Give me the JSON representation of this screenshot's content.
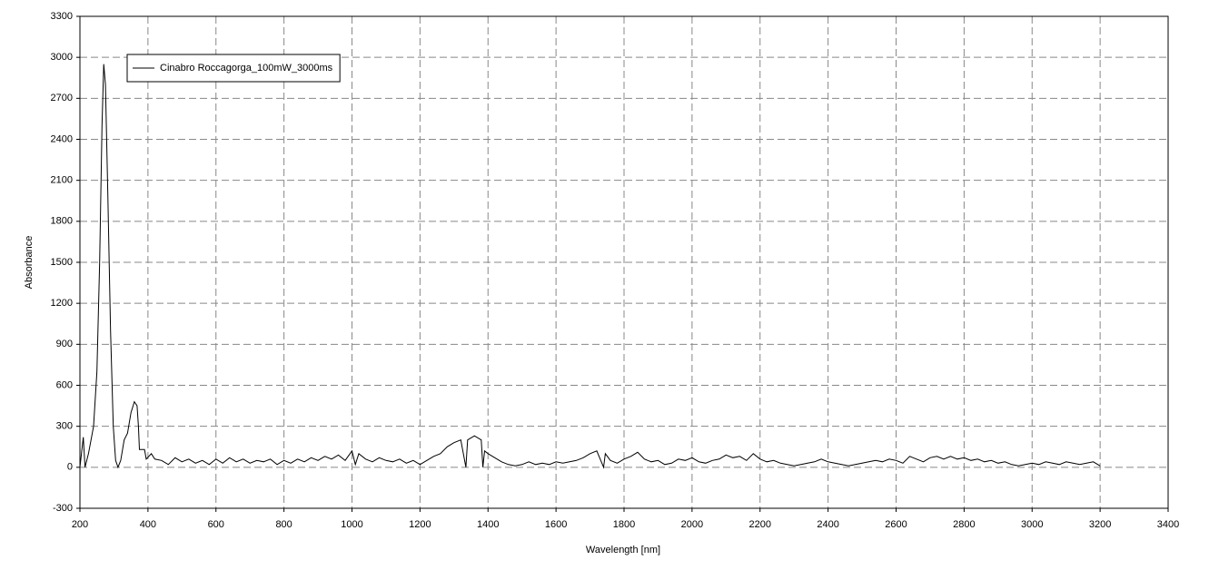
{
  "chart_data": {
    "type": "line",
    "xlabel": "Wavelength [nm]",
    "ylabel": "Absorbance",
    "xlim": [
      200,
      3400
    ],
    "xticks": [
      200,
      400,
      600,
      800,
      1000,
      1200,
      1400,
      1600,
      1800,
      2000,
      2200,
      2400,
      2600,
      2800,
      3000,
      3200,
      3400
    ],
    "ylim": [
      -300,
      3300
    ],
    "yticks": [
      -300,
      0,
      300,
      600,
      900,
      1200,
      1500,
      1800,
      2100,
      2400,
      2700,
      3000,
      3300
    ],
    "grid": true,
    "legend": "upper-left",
    "x": [
      200,
      210,
      215,
      225,
      240,
      250,
      258,
      265,
      270,
      275,
      282,
      290,
      298,
      305,
      312,
      320,
      330,
      340,
      350,
      360,
      368,
      372,
      375,
      390,
      395,
      410,
      420,
      440,
      460,
      480,
      500,
      520,
      540,
      560,
      580,
      600,
      620,
      640,
      660,
      680,
      700,
      720,
      740,
      760,
      780,
      800,
      820,
      840,
      860,
      880,
      900,
      920,
      940,
      960,
      980,
      1000,
      1010,
      1020,
      1040,
      1060,
      1080,
      1100,
      1120,
      1140,
      1160,
      1180,
      1200,
      1220,
      1240,
      1260,
      1280,
      1300,
      1320,
      1335,
      1340,
      1360,
      1380,
      1385,
      1390,
      1400,
      1420,
      1440,
      1460,
      1480,
      1500,
      1520,
      1540,
      1560,
      1580,
      1600,
      1620,
      1640,
      1660,
      1680,
      1700,
      1720,
      1740,
      1745,
      1760,
      1780,
      1800,
      1820,
      1840,
      1860,
      1880,
      1900,
      1920,
      1940,
      1960,
      1980,
      2000,
      2020,
      2040,
      2060,
      2080,
      2100,
      2120,
      2140,
      2160,
      2180,
      2200,
      2220,
      2240,
      2260,
      2280,
      2300,
      2320,
      2340,
      2360,
      2380,
      2400,
      2420,
      2440,
      2460,
      2480,
      2500,
      2520,
      2540,
      2560,
      2580,
      2600,
      2620,
      2640,
      2660,
      2680,
      2700,
      2720,
      2740,
      2760,
      2780,
      2800,
      2820,
      2840,
      2860,
      2880,
      2900,
      2920,
      2940,
      2960,
      2980,
      3000,
      3020,
      3040,
      3060,
      3080,
      3100,
      3120,
      3140,
      3160,
      3180,
      3200
    ],
    "series": [
      {
        "name": "Cinabro Roccagorga_100mW_3000ms",
        "color": "#000000",
        "values": [
          0,
          220,
          0,
          100,
          300,
          700,
          1500,
          2500,
          2950,
          2800,
          2000,
          1000,
          300,
          50,
          0,
          50,
          200,
          250,
          400,
          480,
          450,
          300,
          130,
          130,
          60,
          100,
          60,
          50,
          20,
          70,
          40,
          60,
          30,
          50,
          20,
          60,
          30,
          70,
          40,
          60,
          30,
          50,
          40,
          60,
          20,
          50,
          30,
          60,
          40,
          70,
          50,
          80,
          60,
          90,
          50,
          120,
          20,
          100,
          60,
          40,
          70,
          50,
          40,
          60,
          30,
          50,
          20,
          50,
          80,
          100,
          150,
          180,
          200,
          0,
          200,
          230,
          200,
          0,
          120,
          100,
          70,
          40,
          20,
          10,
          20,
          40,
          20,
          30,
          20,
          40,
          30,
          40,
          50,
          70,
          100,
          120,
          0,
          100,
          50,
          30,
          60,
          80,
          110,
          60,
          40,
          50,
          20,
          30,
          60,
          50,
          70,
          40,
          30,
          50,
          60,
          90,
          70,
          80,
          50,
          100,
          60,
          40,
          50,
          30,
          20,
          10,
          20,
          30,
          40,
          60,
          40,
          30,
          20,
          10,
          20,
          30,
          40,
          50,
          40,
          60,
          50,
          30,
          80,
          60,
          40,
          70,
          80,
          60,
          80,
          60,
          70,
          50,
          60,
          40,
          50,
          30,
          40,
          20,
          10,
          20,
          30,
          20,
          40,
          30,
          20,
          40,
          30,
          20,
          30,
          40,
          10
        ]
      }
    ]
  }
}
